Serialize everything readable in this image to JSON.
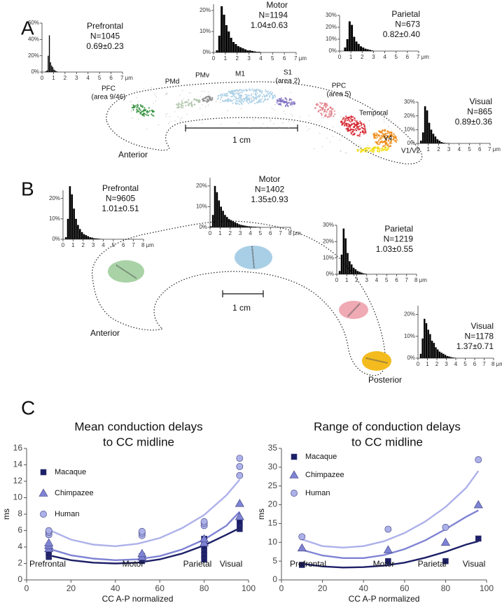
{
  "panel_labels": [
    "A",
    "B",
    "C"
  ],
  "diagram_a": {
    "labels": [
      "PFC",
      "(area 9/46)",
      "PMd",
      "PMv",
      "M1",
      "S1",
      "(area 2)",
      "PPC",
      "(area 5)",
      "Temporal",
      "V4",
      "V1/V2"
    ],
    "scale": "1 cm",
    "orientation": [
      "Anterior"
    ]
  },
  "diagram_b": {
    "scale": "1 cm",
    "orientation": [
      "Anterior",
      "Posterior"
    ]
  },
  "chart_data": [
    {
      "type": "histogram",
      "annotations": [
        "Prefrontal",
        "N=1045",
        "0.69±0.23"
      ],
      "color": "#000000",
      "bins": [
        0.3,
        0.4,
        0.5,
        0.6,
        0.7,
        0.8,
        0.9,
        1.0,
        1.1,
        1.2,
        1.3,
        1.4
      ],
      "values": [
        1,
        2,
        20,
        45,
        12,
        8,
        6,
        3,
        2,
        1,
        0.5
      ],
      "xlim": [
        0,
        7
      ],
      "xticks": [
        0,
        1,
        2,
        3,
        4,
        5,
        6,
        {
          "value": 7,
          "label": "7 μm"
        }
      ],
      "ylim": [
        0,
        60
      ],
      "yticks": [
        {
          "value": 0,
          "label": "0%"
        },
        {
          "value": 20,
          "label": "20%"
        },
        {
          "value": 40,
          "label": "40%"
        },
        {
          "value": 60,
          "label": "60%"
        }
      ]
    },
    {
      "type": "histogram",
      "annotations": [
        "Motor",
        "N=1194",
        "1.04±0.63"
      ],
      "color": "#000000",
      "bins": [
        0,
        0.2,
        0.4,
        0.6,
        0.8,
        1.0,
        1.2,
        1.4,
        1.6,
        1.8,
        2.0,
        2.2,
        2.4,
        2.6,
        2.8,
        3.0,
        3.2,
        3.4,
        3.6,
        3.8,
        4.0
      ],
      "values": [
        0,
        1,
        8,
        22,
        18,
        13,
        10,
        7,
        5,
        4,
        3,
        2.5,
        2,
        1.5,
        1,
        1,
        0.7,
        0.5,
        0.3,
        0.3
      ],
      "xlim": [
        0,
        7
      ],
      "xticks": [
        0,
        1,
        2,
        3,
        4,
        5,
        6,
        {
          "value": 7,
          "label": "7 μm"
        }
      ],
      "ylim": [
        0,
        23
      ],
      "yticks": [
        {
          "value": 0,
          "label": "0%"
        },
        {
          "value": 10,
          "label": "10%"
        },
        {
          "value": 20,
          "label": "20%"
        }
      ]
    },
    {
      "type": "histogram",
      "annotations": [
        "Parietal",
        "N=673",
        "0.82±0.40"
      ],
      "color": "#000000",
      "bins": [
        0.4,
        0.6,
        0.8,
        1.0,
        1.2,
        1.4,
        1.6,
        1.8,
        2.0,
        2.2,
        2.4,
        2.6,
        2.8,
        3.0
      ],
      "values": [
        3,
        10,
        25,
        22,
        12,
        8,
        6,
        4,
        3,
        2,
        1.5,
        1,
        0.5
      ],
      "xlim": [
        0,
        7
      ],
      "xticks": [
        0,
        1,
        2,
        3,
        4,
        5,
        6,
        {
          "value": 7,
          "label": "7 μm"
        }
      ],
      "ylim": [
        0,
        30
      ],
      "yticks": [
        {
          "value": 0,
          "label": "0%"
        },
        {
          "value": 10,
          "label": "10%"
        },
        {
          "value": 20,
          "label": "20%"
        },
        {
          "value": 30,
          "label": "30%"
        }
      ]
    },
    {
      "type": "histogram",
      "annotations": [
        "Visual",
        "N=865",
        "0.89±0.36"
      ],
      "color": "#000000",
      "bins": [
        0.2,
        0.4,
        0.6,
        0.8,
        1.0,
        1.2,
        1.4,
        1.6,
        1.8,
        2.0,
        2.2,
        2.4,
        2.6,
        2.8,
        3.0
      ],
      "values": [
        2,
        8,
        27,
        24,
        15,
        10,
        7,
        5,
        3,
        2,
        1,
        0.5,
        0.3,
        0.2
      ],
      "xlim": [
        0,
        7
      ],
      "xticks": [
        0,
        1,
        2,
        3,
        4,
        5,
        6,
        {
          "value": 7,
          "label": "7 μm"
        }
      ],
      "ylim": [
        0,
        30
      ],
      "yticks": [
        {
          "value": 0,
          "label": "0%"
        },
        {
          "value": 10,
          "label": "10%"
        },
        {
          "value": 20,
          "label": "20%"
        },
        {
          "value": 30,
          "label": "30%"
        }
      ]
    },
    {
      "type": "histogram",
      "annotations": [
        "Prefrontal",
        "N=9605",
        "1.01±0.51"
      ],
      "color": "#000000",
      "bins": [
        0.2,
        0.4,
        0.6,
        0.8,
        1.0,
        1.2,
        1.4,
        1.6,
        1.8,
        2.0,
        2.2,
        2.4,
        2.6,
        2.8,
        3.0,
        3.2,
        3.4,
        3.6,
        3.8,
        4.0
      ],
      "values": [
        1,
        10,
        26,
        22,
        15,
        10,
        7,
        5,
        3.5,
        2.5,
        2,
        1.5,
        1,
        0.8,
        0.5,
        0.4,
        0.3,
        0.2,
        0.1
      ],
      "xlim": [
        0,
        8
      ],
      "xticks": [
        0,
        1,
        2,
        3,
        4,
        5,
        6,
        7,
        {
          "value": 8,
          "label": "8 μm"
        }
      ],
      "ylim": [
        0,
        24
      ],
      "yticks": [
        {
          "value": 0,
          "label": "0%"
        },
        {
          "value": 10,
          "label": "10%"
        },
        {
          "value": 20,
          "label": "20%"
        }
      ]
    },
    {
      "type": "histogram",
      "annotations": [
        "Motor",
        "N=1402",
        "1.35±0.93"
      ],
      "color": "#000000",
      "bins": [
        0,
        0.2,
        0.4,
        0.6,
        0.8,
        1.0,
        1.2,
        1.4,
        1.6,
        1.8,
        2.0,
        2.2,
        2.4,
        2.6,
        2.8,
        3.0,
        3.2,
        3.4,
        3.6,
        3.8,
        4.0,
        4.2,
        4.4,
        4.6,
        4.8,
        5.0
      ],
      "values": [
        0.5,
        6,
        20,
        17,
        13,
        10,
        8,
        6,
        5,
        4,
        3.5,
        3,
        2.5,
        2,
        1.5,
        1.2,
        1,
        0.8,
        0.6,
        0.5,
        0.4,
        0.3,
        0.3,
        0.2,
        0.2
      ],
      "xlim": [
        0,
        8
      ],
      "xticks": [
        0,
        1,
        2,
        3,
        4,
        5,
        6,
        7,
        {
          "value": 8,
          "label": "8 μm"
        }
      ],
      "ylim": [
        0,
        24
      ],
      "yticks": [
        {
          "value": 0,
          "label": "0%"
        },
        {
          "value": 10,
          "label": "10%"
        },
        {
          "value": 20,
          "label": "20%"
        }
      ]
    },
    {
      "type": "histogram",
      "annotations": [
        "Parietal",
        "N=1219",
        "1.03±0.55"
      ],
      "color": "#000000",
      "bins": [
        0.2,
        0.4,
        0.6,
        0.8,
        1.0,
        1.2,
        1.4,
        1.6,
        1.8,
        2.0,
        2.2,
        2.4,
        2.6,
        2.8,
        3.0
      ],
      "values": [
        2,
        12,
        28,
        22,
        13,
        8,
        6,
        4,
        3,
        2,
        1.5,
        1,
        0.5,
        0.3
      ],
      "xlim": [
        0,
        8
      ],
      "xticks": [
        0,
        1,
        2,
        3,
        4,
        5,
        6,
        7,
        {
          "value": 8,
          "label": "8 μm"
        }
      ],
      "ylim": [
        0,
        30
      ],
      "yticks": [
        {
          "value": 0,
          "label": "0%"
        },
        {
          "value": 10,
          "label": "10%"
        },
        {
          "value": 20,
          "label": "20%"
        },
        {
          "value": 30,
          "label": "30%"
        }
      ]
    },
    {
      "type": "histogram",
      "annotations": [
        "Visual",
        "N=1178",
        "1.37±0.71"
      ],
      "color": "#000000",
      "bins": [
        0.2,
        0.4,
        0.6,
        0.8,
        1.0,
        1.2,
        1.4,
        1.6,
        1.8,
        2.0,
        2.2,
        2.4,
        2.6,
        2.8,
        3.0,
        3.2,
        3.4,
        3.6,
        3.8,
        4.0
      ],
      "values": [
        2,
        9,
        18,
        16,
        13,
        11,
        8,
        7,
        5,
        4,
        3,
        2.5,
        2,
        1.5,
        1,
        0.8,
        0.5,
        0.3,
        0.2
      ],
      "xlim": [
        0,
        8
      ],
      "xticks": [
        0,
        1,
        2,
        3,
        4,
        5,
        6,
        7,
        {
          "value": 8,
          "label": "8 μm"
        }
      ],
      "ylim": [
        0,
        24
      ],
      "yticks": [
        {
          "value": 0,
          "label": "0%"
        },
        {
          "value": 10,
          "label": "10%"
        },
        {
          "value": 20,
          "label": "20%"
        }
      ]
    },
    {
      "type": "scatter",
      "title_lines": [
        "Mean conduction delays",
        "to CC midline"
      ],
      "x_label": "CC A-P normalized",
      "y_label": "ms",
      "region_labels": [
        "Prefrontal",
        "Motor",
        "Parietal",
        "Visual"
      ],
      "xlim": [
        0,
        100
      ],
      "xticks": [
        0,
        20,
        40,
        60,
        80,
        100
      ],
      "ylim": [
        0,
        16
      ],
      "yticks": [
        0,
        2,
        4,
        6,
        8,
        10,
        12,
        14,
        16
      ],
      "series": [
        {
          "name": "Macaque",
          "color": "#1c1f66",
          "marker": "square",
          "x": [
            10,
            10,
            10,
            10,
            52,
            52,
            52,
            80,
            80,
            80,
            80,
            80,
            80,
            96,
            96,
            96,
            96
          ],
          "values": [
            2.8,
            3.0,
            3.2,
            3.5,
            2.3,
            2.6,
            2.9,
            2.5,
            3.0,
            3.5,
            4.0,
            4.5,
            5.0,
            6.2,
            6.5,
            6.8,
            7.0
          ]
        },
        {
          "name": "Chimpazee",
          "color": "#7f83d4",
          "marker": "triangle",
          "x": [
            10,
            10,
            10,
            52,
            52,
            80,
            80,
            96,
            96
          ],
          "values": [
            3.8,
            4.2,
            4.5,
            2.8,
            3.2,
            4.5,
            5.0,
            7.7,
            9.3
          ]
        },
        {
          "name": "Human",
          "color": "#adb1ea",
          "marker": "circle",
          "x": [
            10,
            10,
            10,
            52,
            52,
            52,
            80,
            80,
            80,
            96,
            96,
            96
          ],
          "values": [
            5.5,
            5.8,
            6.0,
            5.4,
            5.7,
            5.9,
            6.6,
            6.9,
            7.1,
            12.7,
            13.8,
            14.8
          ]
        }
      ],
      "fits": [
        {
          "color": "#1c1f66",
          "x": [
            10,
            20,
            30,
            40,
            50,
            60,
            70,
            80,
            90,
            96
          ],
          "values": [
            3.0,
            2.4,
            2.1,
            2.0,
            2.1,
            2.5,
            3.2,
            4.2,
            5.5,
            6.3
          ]
        },
        {
          "color": "#7f83d4",
          "x": [
            10,
            20,
            30,
            40,
            50,
            60,
            70,
            80,
            90,
            96
          ],
          "values": [
            3.8,
            3.0,
            2.6,
            2.4,
            2.5,
            2.9,
            3.7,
            4.9,
            6.6,
            8.3
          ]
        },
        {
          "color": "#adb1ea",
          "x": [
            10,
            20,
            30,
            40,
            50,
            60,
            70,
            80,
            90,
            96
          ],
          "values": [
            6.1,
            4.9,
            4.3,
            4.1,
            4.4,
            5.1,
            6.3,
            7.9,
            10.3,
            12.2
          ]
        }
      ]
    },
    {
      "type": "scatter",
      "title_lines": [
        "Range of conduction delays",
        "to CC midline"
      ],
      "x_label": "CC A-P normalized",
      "y_label": "ms",
      "region_labels": [
        "Prefrontal",
        "Motor",
        "Parietal",
        "Visual"
      ],
      "xlim": [
        0,
        100
      ],
      "xticks": [
        0,
        20,
        40,
        60,
        80,
        100
      ],
      "ylim": [
        0,
        35
      ],
      "yticks": [
        0,
        5,
        10,
        15,
        20,
        25,
        30,
        35
      ],
      "series": [
        {
          "name": "Macaque",
          "color": "#1c1f66",
          "marker": "square",
          "x": [
            10,
            52,
            80,
            96
          ],
          "values": [
            4,
            5,
            5,
            11
          ]
        },
        {
          "name": "Chimpazee",
          "color": "#7f83d4",
          "marker": "triangle",
          "x": [
            10,
            52,
            80,
            96
          ],
          "values": [
            8.5,
            8,
            10,
            20
          ]
        },
        {
          "name": "Human",
          "color": "#adb1ea",
          "marker": "circle",
          "x": [
            10,
            52,
            80,
            96
          ],
          "values": [
            11.5,
            13.5,
            14,
            32
          ]
        }
      ],
      "fits": [
        {
          "color": "#1c1f66",
          "x": [
            10,
            20,
            30,
            40,
            50,
            60,
            70,
            80,
            90,
            96
          ],
          "values": [
            4.3,
            3.6,
            3.3,
            3.4,
            3.8,
            4.6,
            5.9,
            7.5,
            9.4,
            10.3
          ]
        },
        {
          "color": "#7f83d4",
          "x": [
            10,
            20,
            30,
            40,
            50,
            60,
            70,
            80,
            90,
            96
          ],
          "values": [
            8.0,
            6.5,
            5.8,
            5.8,
            6.6,
            8.2,
            10.5,
            13.5,
            16.8,
            18.5
          ]
        },
        {
          "color": "#adb1ea",
          "x": [
            10,
            20,
            30,
            40,
            50,
            60,
            70,
            80,
            90,
            96
          ],
          "values": [
            10.8,
            9.0,
            8.6,
            9.0,
            10.3,
            12.5,
            15.5,
            19.4,
            24.5,
            29.0
          ]
        }
      ]
    }
  ]
}
